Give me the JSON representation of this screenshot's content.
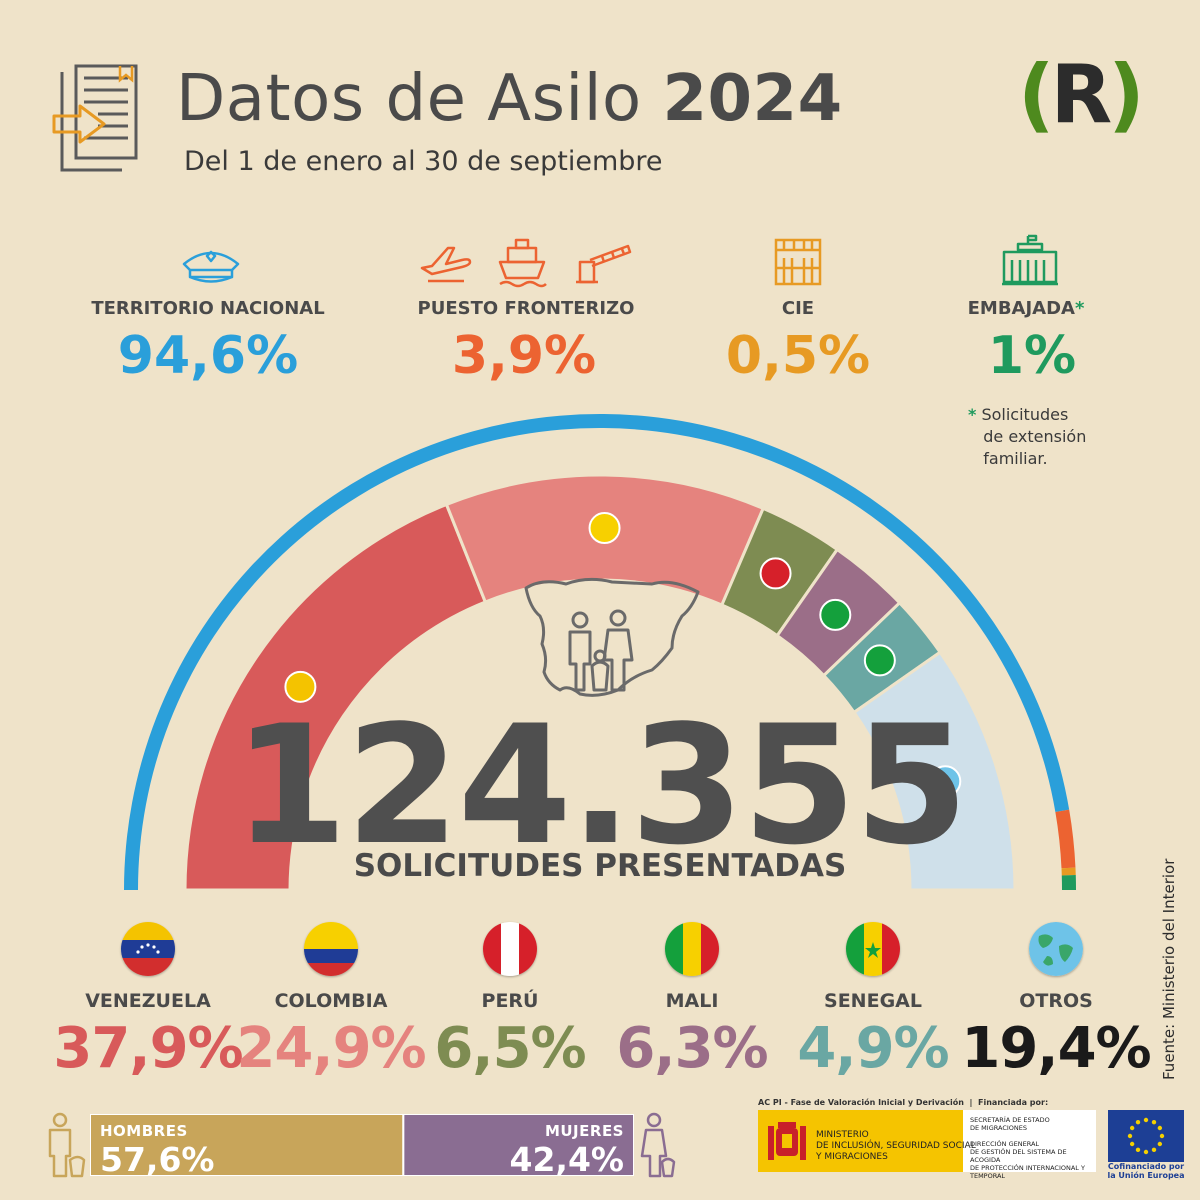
{
  "header": {
    "title_main": "Datos de Asilo",
    "title_year": "2024",
    "subtitle": "Del 1 de enero al 30 de septiembre",
    "logo_letter": "R"
  },
  "categories": [
    {
      "label": "TERRITORIO NACIONAL",
      "value": "94,6%",
      "color": "#2a9fda",
      "icon": "police-cap-icon"
    },
    {
      "label": "PUESTO FRONTERIZO",
      "value": "3,9%",
      "color": "#ec6331",
      "icon": "airplane-ship-barrier-icons"
    },
    {
      "label": "CIE",
      "value": "0,5%",
      "color": "#e79a23",
      "icon": "building-icon"
    },
    {
      "label": "EMBAJADA",
      "label_mark": "*",
      "value": "1%",
      "color": "#1f9a5e",
      "icon": "embassy-icon"
    }
  ],
  "note": {
    "mark": "*",
    "line1": "Solicitudes",
    "line2": "de extensión",
    "line3": "familiar."
  },
  "total": {
    "value": "124.355",
    "label": "SOLICITUDES PRESENTADAS"
  },
  "countries": [
    {
      "name": "VENEZUELA",
      "value": "37,9%",
      "color": "#d85a5a",
      "flag": "venezuela-flag-icon"
    },
    {
      "name": "COLOMBIA",
      "value": "24,9%",
      "color": "#e5837e",
      "flag": "colombia-flag-icon"
    },
    {
      "name": "PERÚ",
      "value": "6,5%",
      "color": "#7e8c52",
      "flag": "peru-flag-icon"
    },
    {
      "name": "MALI",
      "value": "6,3%",
      "color": "#9b6e88",
      "flag": "mali-flag-icon"
    },
    {
      "name": "SENEGAL",
      "value": "4,9%",
      "color": "#6aa7a3",
      "flag": "senegal-flag-icon"
    },
    {
      "name": "OTROS",
      "value": "19,4%",
      "color": "#1a1a1a",
      "flag": "globe-icon"
    }
  ],
  "gender": {
    "men_label": "HOMBRES",
    "men_value": "57,6%",
    "men_color": "#c8a55a",
    "women_label": "MUJERES",
    "women_value": "42,4%",
    "women_color": "#8a6d92"
  },
  "source": "Fuente: Ministerio del Interior",
  "footer": {
    "header_text": "AC PI - Fase de Valoración Inicial y Derivación",
    "header_text2": "Financiada por:",
    "ministry_line1": "MINISTERIO",
    "ministry_line2": "DE INCLUSIÓN, SEGURIDAD SOCIAL",
    "ministry_line3": "Y MIGRACIONES",
    "sec_line1": "SECRETARÍA DE ESTADO",
    "sec_line2": "DE MIGRACIONES",
    "sec_line3": "DIRECCIÓN GENERAL",
    "sec_line4": "DE GESTIÓN DEL SISTEMA DE ACOGIDA",
    "sec_line5": "DE PROTECCIÓN INTERNACIONAL Y",
    "sec_line6": "TEMPORAL",
    "eu_line1": "Cofinanciado por",
    "eu_line2": "la Unión Europea"
  },
  "chart_data": [
    {
      "type": "pie",
      "title": "",
      "description_variant": "semicircle outer ring by application location",
      "categories": [
        "TERRITORIO NACIONAL",
        "PUESTO FRONTERIZO",
        "CIE",
        "EMBAJADA"
      ],
      "values": [
        94.6,
        3.9,
        0.5,
        1
      ],
      "colors": [
        "#2a9fda",
        "#ec6331",
        "#e79a23",
        "#1f9a5e"
      ]
    },
    {
      "type": "pie",
      "title": "",
      "description_variant": "semicircle inner ring by nationality",
      "categories": [
        "VENEZUELA",
        "COLOMBIA",
        "PERÚ",
        "MALI",
        "SENEGAL",
        "OTROS"
      ],
      "values": [
        37.9,
        24.9,
        6.5,
        6.3,
        4.9,
        19.4
      ],
      "colors": [
        "#d85a5a",
        "#e5837e",
        "#7e8c52",
        "#9b6e88",
        "#6aa7a3",
        "#cfe0ea"
      ]
    },
    {
      "type": "bar",
      "title": "",
      "categories": [
        "HOMBRES",
        "MUJERES"
      ],
      "values": [
        57.6,
        42.4
      ],
      "colors": [
        "#c8a55a",
        "#8a6d92"
      ]
    }
  ]
}
